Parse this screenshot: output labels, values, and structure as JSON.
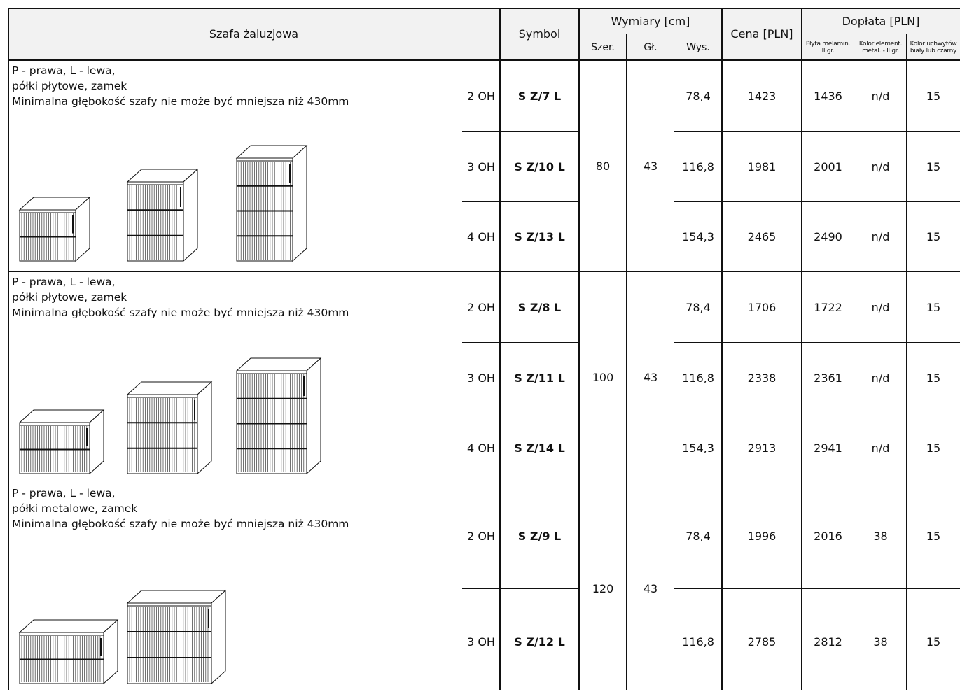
{
  "header": {
    "title": "Szafa żaluzjowa",
    "symbol": "Symbol",
    "wymiary": "Wymiary [cm]",
    "szer": "Szer.",
    "gl": "Gł.",
    "wys": "Wys.",
    "cena": "Cena [PLN]",
    "doplata": "Dopłata [PLN]",
    "d1_l1": "Płyta melamin.",
    "d1_l2": "II gr.",
    "d2_l1": "Kolor element.",
    "d2_l2": "metal. - II gr.",
    "d3_l1": "Kolor uchwytów",
    "d3_l2": "biały lub czarny"
  },
  "groups": [
    {
      "desc": "P - prawa, L - lewa,\npółki płytowe, zamek\nMinimalna głębokość szafy nie może być mniejsza niż 430mm",
      "szer": "80",
      "gl": "43",
      "rows": [
        {
          "oh": "2 OH",
          "symbol": "S Z/7 L",
          "wys": "78,4",
          "cena": "1423",
          "d1": "1436",
          "d2": "n/d",
          "d3": "15"
        },
        {
          "oh": "3 OH",
          "symbol": "S Z/10 L",
          "wys": "116,8",
          "cena": "1981",
          "d1": "2001",
          "d2": "n/d",
          "d3": "15"
        },
        {
          "oh": "4 OH",
          "symbol": "S Z/13 L",
          "wys": "154,3",
          "cena": "2465",
          "d1": "2490",
          "d2": "n/d",
          "d3": "15"
        }
      ]
    },
    {
      "desc": "P - prawa, L - lewa,\npółki płytowe, zamek\nMinimalna głębokość szafy nie może być mniejsza niż 430mm",
      "szer": "100",
      "gl": "43",
      "rows": [
        {
          "oh": "2 OH",
          "symbol": "S Z/8 L",
          "wys": "78,4",
          "cena": "1706",
          "d1": "1722",
          "d2": "n/d",
          "d3": "15"
        },
        {
          "oh": "3 OH",
          "symbol": "S Z/11 L",
          "wys": "116,8",
          "cena": "2338",
          "d1": "2361",
          "d2": "n/d",
          "d3": "15"
        },
        {
          "oh": "4 OH",
          "symbol": "S Z/14 L",
          "wys": "154,3",
          "cena": "2913",
          "d1": "2941",
          "d2": "n/d",
          "d3": "15"
        }
      ]
    },
    {
      "desc": "P - prawa, L - lewa,\npółki metalowe, zamek\nMinimalna głębokość szafy nie może być mniejsza niż 430mm",
      "szer": "120",
      "gl": "43",
      "rows": [
        {
          "oh": "2 OH",
          "symbol": "S Z/9 L",
          "wys": "78,4",
          "cena": "1996",
          "d1": "2016",
          "d2": "38",
          "d3": "15"
        },
        {
          "oh": "3 OH",
          "symbol": "S Z/12 L",
          "wys": "116,8",
          "cena": "2785",
          "d1": "2812",
          "d2": "38",
          "d3": "15"
        }
      ]
    }
  ]
}
